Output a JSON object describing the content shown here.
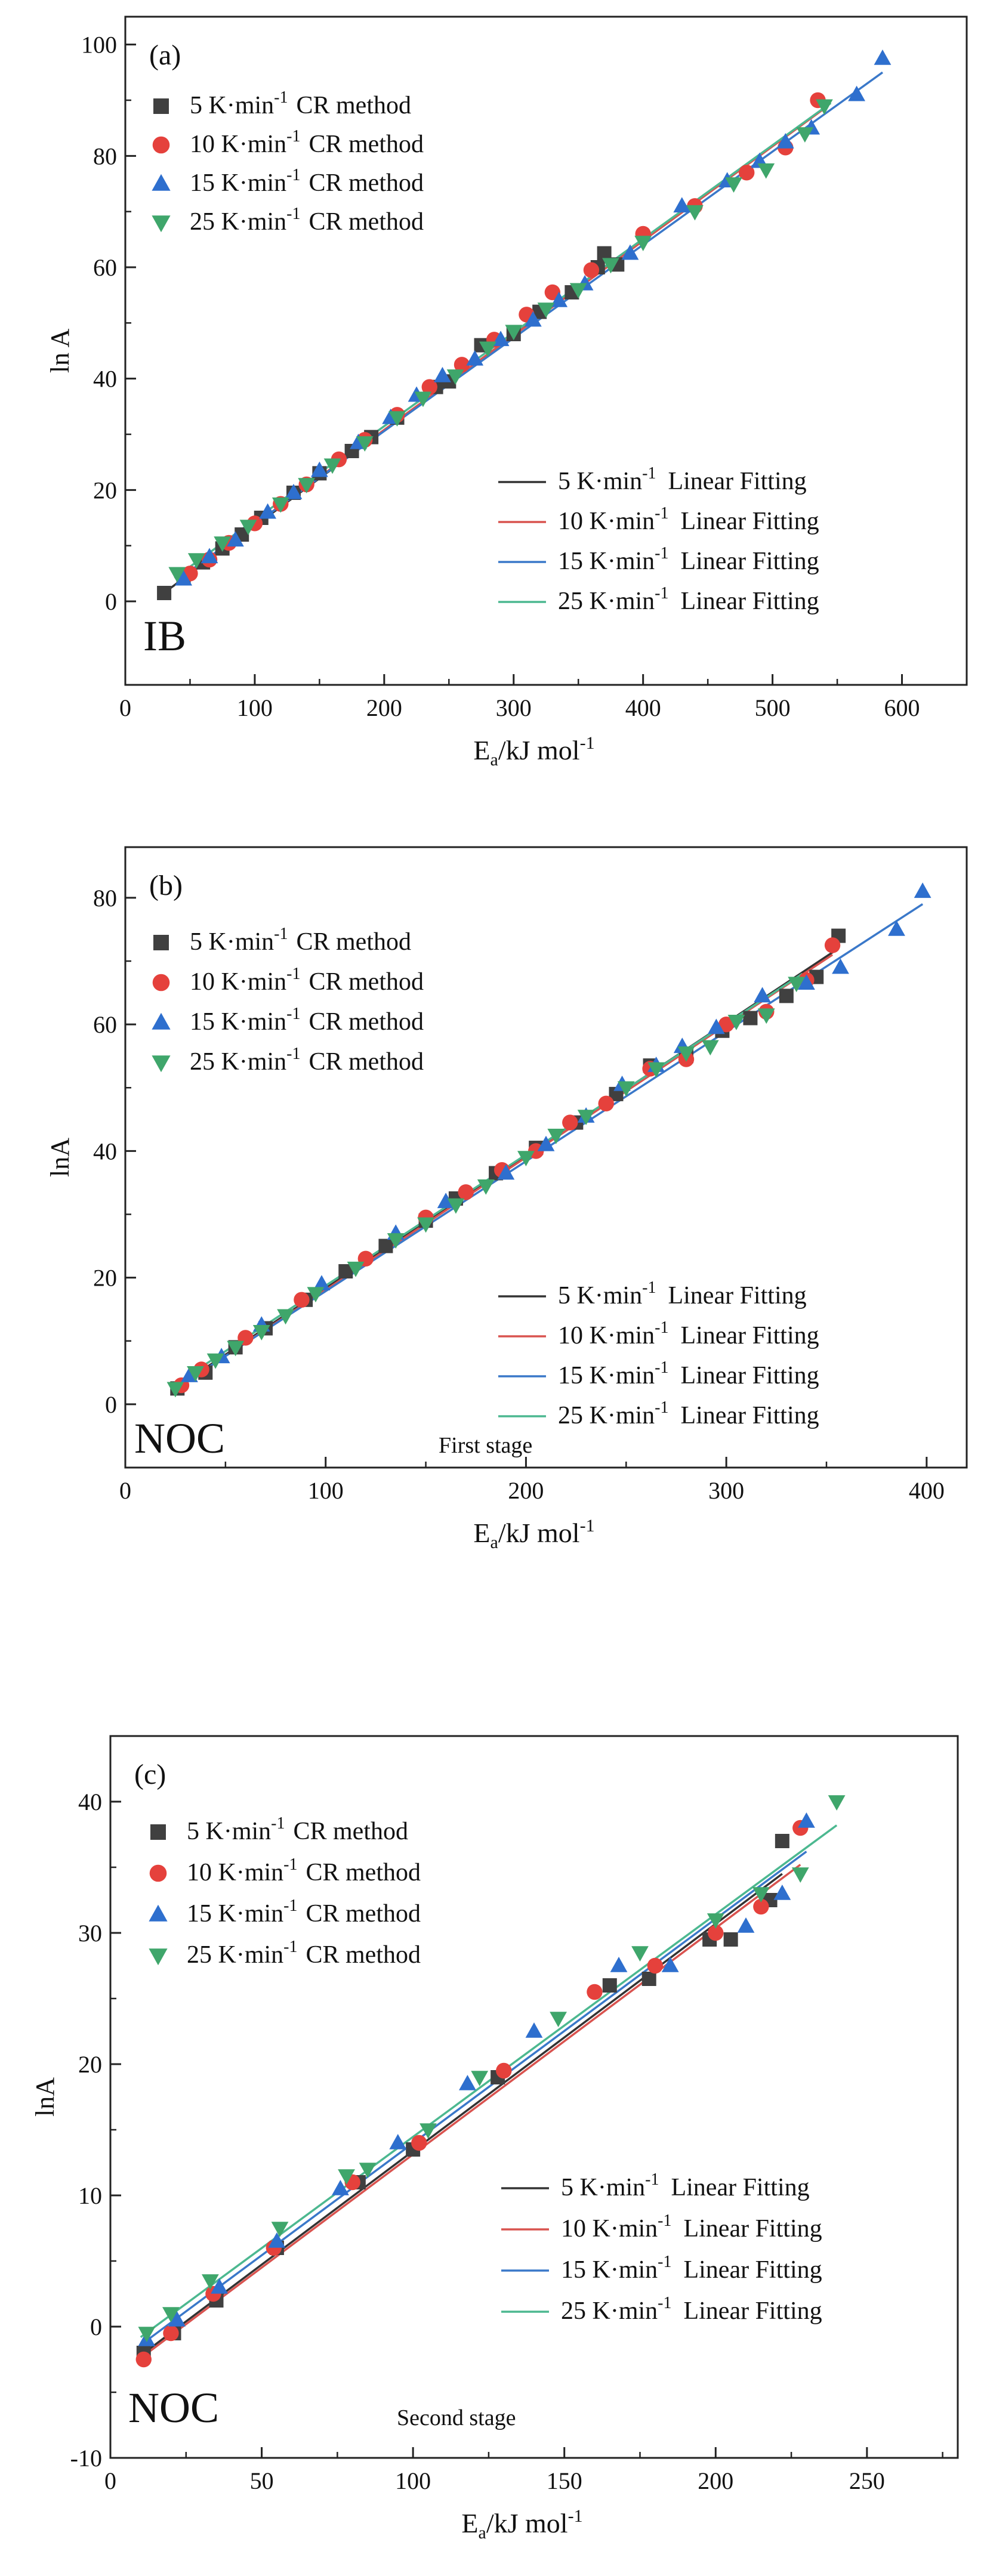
{
  "colors": {
    "s5": "#404040",
    "s10": "#e5413c",
    "s15": "#2e6fce",
    "s25": "#3fa66b",
    "fit5": "#333333",
    "fit10": "#d9534f",
    "fit15": "#3a78c9",
    "fit25": "#4cb890"
  },
  "chart_data": [
    {
      "type": "scatter",
      "panel_label": "(a)",
      "sample_label": "IB",
      "stage_label": "",
      "ylabel": "ln A",
      "xlabel_main": "E",
      "xlabel_sub": "a",
      "xlabel_rest": "/kJ mol",
      "xlabel_sup": "-1",
      "xlim": [
        0,
        650
      ],
      "ylim": [
        -15,
        105
      ],
      "xticks": [
        0,
        100,
        200,
        300,
        400,
        500,
        600
      ],
      "yticks": [
        0,
        20,
        40,
        60,
        80,
        100
      ],
      "xtick_labels": [
        "0",
        "100",
        "200",
        "300",
        "400",
        "500",
        "600"
      ],
      "ytick_labels": [
        "0",
        "20",
        "40",
        "60",
        "80",
        "100"
      ],
      "legend_scatter": [
        {
          "rate": "5 K·min",
          "sup": "-1",
          "method": "CR method"
        },
        {
          "rate": "10 K·min",
          "sup": "-1",
          "method": "CR method"
        },
        {
          "rate": "15 K·min",
          "sup": "-1",
          "method": "CR method"
        },
        {
          "rate": "25 K·min",
          "sup": "-1",
          "method": "CR method"
        }
      ],
      "legend_fit": [
        {
          "rate": "5 K·min",
          "sup": "-1",
          "method": "Linear Fitting"
        },
        {
          "rate": "10 K·min",
          "sup": "-1",
          "method": "Linear Fitting"
        },
        {
          "rate": "15 K·min",
          "sup": "-1",
          "method": "Linear Fitting"
        },
        {
          "rate": "25 K·min",
          "sup": "-1",
          "method": "Linear Fitting"
        }
      ],
      "series": [
        {
          "name": "5 K·min-1 CR method",
          "marker": "square",
          "color_key": "s5",
          "x": [
            30,
            45,
            60,
            75,
            90,
            105,
            130,
            150,
            175,
            190,
            210,
            240,
            250,
            275,
            300,
            320,
            345,
            365,
            370,
            380
          ],
          "y": [
            1.5,
            4.5,
            7,
            9.5,
            12,
            15,
            19.5,
            23,
            27,
            29.5,
            33,
            38.5,
            39.5,
            46,
            48,
            52,
            55.5,
            60,
            62.5,
            60.5
          ]
        },
        {
          "name": "10 K·min-1 CR method",
          "marker": "circle",
          "color_key": "s10",
          "x": [
            50,
            65,
            80,
            100,
            120,
            140,
            165,
            185,
            210,
            235,
            260,
            285,
            310,
            330,
            360,
            400,
            440,
            480,
            510,
            535
          ],
          "y": [
            5,
            7.5,
            10.5,
            14,
            17.5,
            21,
            25.5,
            29,
            33.5,
            38.5,
            42.5,
            47,
            51.5,
            55.5,
            59.5,
            66,
            71,
            77,
            81.5,
            90
          ]
        },
        {
          "name": "15 K·min-1 CR method",
          "marker": "triangle-up",
          "color_key": "s15",
          "x": [
            45,
            65,
            85,
            110,
            130,
            150,
            180,
            205,
            225,
            245,
            270,
            290,
            315,
            335,
            355,
            390,
            430,
            465,
            490,
            510,
            530,
            565,
            585
          ],
          "y": [
            4,
            8,
            11,
            16,
            19.5,
            23.5,
            28.5,
            33,
            37,
            40.5,
            43.5,
            47,
            50.5,
            54,
            57,
            62.5,
            71,
            75.5,
            79,
            82.5,
            85,
            91,
            97.5
          ]
        },
        {
          "name": "25 K·min-1 CR method",
          "marker": "triangle-down",
          "color_key": "s25",
          "x": [
            40,
            55,
            75,
            95,
            120,
            140,
            160,
            185,
            210,
            230,
            255,
            280,
            300,
            325,
            350,
            375,
            400,
            440,
            470,
            495,
            525,
            540
          ],
          "y": [
            5,
            7.5,
            10.5,
            13.5,
            17.5,
            21,
            24.5,
            28.5,
            33,
            36.5,
            40.5,
            45.5,
            48.5,
            52.5,
            56,
            60.5,
            64.5,
            70,
            75,
            77.5,
            84,
            89
          ]
        }
      ],
      "fits": [
        {
          "name": "5 K·min-1 Linear Fitting",
          "color_key": "fit5",
          "x": [
            28,
            380
          ],
          "y": [
            1.2,
            61.5
          ]
        },
        {
          "name": "10 K·min-1 Linear Fitting",
          "color_key": "fit10",
          "x": [
            45,
            540
          ],
          "y": [
            4.5,
            88.5
          ]
        },
        {
          "name": "15 K·min-1 Linear Fitting",
          "color_key": "fit15",
          "x": [
            40,
            585
          ],
          "y": [
            3.8,
            95
          ]
        },
        {
          "name": "25 K·min-1 Linear Fitting",
          "color_key": "fit25",
          "x": [
            38,
            545
          ],
          "y": [
            4.2,
            89.5
          ]
        }
      ]
    },
    {
      "type": "scatter",
      "panel_label": "(b)",
      "sample_label": "NOC",
      "stage_label": "First stage",
      "ylabel": "lnA",
      "xlabel_main": "E",
      "xlabel_sub": "a",
      "xlabel_rest": "/kJ mol",
      "xlabel_sup": "-1",
      "xlim": [
        0,
        420
      ],
      "ylim": [
        -10,
        88
      ],
      "xticks": [
        0,
        100,
        200,
        300,
        400
      ],
      "yticks": [
        0,
        20,
        40,
        60,
        80
      ],
      "xtick_labels": [
        "0",
        "100",
        "200",
        "300",
        "400"
      ],
      "ytick_labels": [
        "0",
        "20",
        "40",
        "60",
        "80"
      ],
      "legend_scatter": [
        {
          "rate": "5 K·min",
          "sup": "-1",
          "method": "CR method"
        },
        {
          "rate": "10 K·min",
          "sup": "-1",
          "method": "CR method"
        },
        {
          "rate": "15 K·min",
          "sup": "-1",
          "method": "CR method"
        },
        {
          "rate": "25 K·min",
          "sup": "-1",
          "method": "CR method"
        }
      ],
      "legend_fit": [
        {
          "rate": "5 K·min",
          "sup": "-1",
          "method": "Linear Fitting"
        },
        {
          "rate": "10 K·min",
          "sup": "-1",
          "method": "Linear Fitting"
        },
        {
          "rate": "15 K·min",
          "sup": "-1",
          "method": "Linear Fitting"
        },
        {
          "rate": "25 K·min",
          "sup": "-1",
          "method": "Linear Fitting"
        }
      ],
      "series": [
        {
          "name": "5 K·min-1 CR method",
          "marker": "square",
          "color_key": "s5",
          "x": [
            26,
            40,
            55,
            70,
            90,
            110,
            130,
            150,
            165,
            185,
            205,
            225,
            245,
            262,
            280,
            298,
            312,
            330,
            345,
            356
          ],
          "y": [
            2.5,
            5,
            9,
            12,
            16.5,
            21,
            25,
            29,
            32.5,
            36.5,
            40.5,
            44.5,
            49,
            53.5,
            55,
            59,
            61,
            64.5,
            67.5,
            74
          ]
        },
        {
          "name": "10 K·min-1 CR method",
          "marker": "circle",
          "color_key": "s10",
          "x": [
            28,
            38,
            60,
            88,
            120,
            150,
            170,
            188,
            205,
            222,
            240,
            262,
            280,
            300,
            320,
            340,
            353
          ],
          "y": [
            3,
            5.5,
            10.5,
            16.5,
            23,
            29.5,
            33.5,
            37,
            40,
            44.5,
            47.5,
            53,
            54.5,
            60,
            62,
            67,
            72.5
          ]
        },
        {
          "name": "15 K·min-1 CR method",
          "marker": "triangle-up",
          "color_key": "s15",
          "x": [
            32,
            48,
            68,
            98,
            135,
            160,
            190,
            210,
            230,
            248,
            265,
            278,
            295,
            318,
            340,
            357,
            385,
            398
          ],
          "y": [
            4.5,
            7.5,
            12.5,
            19,
            27,
            32,
            36.5,
            41,
            45.5,
            50.5,
            53.5,
            56.5,
            59.5,
            64.5,
            66.5,
            69,
            75,
            81
          ]
        },
        {
          "name": "25 K·min-1 CR method",
          "marker": "triangle-down",
          "color_key": "s25",
          "x": [
            25,
            35,
            45,
            55,
            68,
            80,
            95,
            115,
            135,
            150,
            165,
            180,
            200,
            215,
            230,
            250,
            265,
            280,
            292,
            305,
            320,
            335
          ],
          "y": [
            2.5,
            5,
            7,
            9,
            11.5,
            14,
            17.5,
            21.5,
            26,
            28.5,
            31.5,
            34.5,
            39,
            42.5,
            45.5,
            50,
            53,
            55.5,
            56.5,
            60.5,
            61.5,
            66.5
          ]
        }
      ],
      "fits": [
        {
          "name": "5 K·min-1 Linear Fitting",
          "color_key": "fit5",
          "x": [
            25,
            356
          ],
          "y": [
            2.6,
            72
          ]
        },
        {
          "name": "10 K·min-1 Linear Fitting",
          "color_key": "fit10",
          "x": [
            27,
            353
          ],
          "y": [
            2.8,
            71
          ]
        },
        {
          "name": "15 K·min-1 Linear Fitting",
          "color_key": "fit15",
          "x": [
            30,
            398
          ],
          "y": [
            3.5,
            79
          ]
        },
        {
          "name": "25 K·min-1 Linear Fitting",
          "color_key": "fit25",
          "x": [
            24,
            338
          ],
          "y": [
            3,
            68
          ]
        }
      ]
    },
    {
      "type": "scatter",
      "panel_label": "(c)",
      "sample_label": "NOC",
      "stage_label": "Second stage",
      "ylabel": "lnA",
      "xlabel_main": "E",
      "xlabel_sub": "a",
      "xlabel_rest": "/kJ mol",
      "xlabel_sup": "-1",
      "xlim": [
        0,
        280
      ],
      "ylim": [
        -10,
        45
      ],
      "xticks": [
        0,
        50,
        100,
        150,
        200,
        250
      ],
      "yticks": [
        -10,
        0,
        10,
        20,
        30,
        40
      ],
      "xtick_labels": [
        "0",
        "50",
        "100",
        "150",
        "200",
        "250"
      ],
      "ytick_labels": [
        "-10",
        "0",
        "10",
        "20",
        "30",
        "40"
      ],
      "legend_scatter": [
        {
          "rate": "5 K·min",
          "sup": "-1",
          "method": "CR method"
        },
        {
          "rate": "10 K·min",
          "sup": "-1",
          "method": "CR method"
        },
        {
          "rate": "15 K·min",
          "sup": "-1",
          "method": "CR method"
        },
        {
          "rate": "25 K·min",
          "sup": "-1",
          "method": "CR method"
        }
      ],
      "legend_fit": [
        {
          "rate": "5 K·min",
          "sup": "-1",
          "method": "Linear Fitting"
        },
        {
          "rate": "10 K·min",
          "sup": "-1",
          "method": "Linear Fitting"
        },
        {
          "rate": "15 K·min",
          "sup": "-1",
          "method": "Linear Fitting"
        },
        {
          "rate": "25 K·min",
          "sup": "-1",
          "method": "Linear Fitting"
        }
      ],
      "series": [
        {
          "name": "5 K·min-1 CR method",
          "marker": "square",
          "color_key": "s5",
          "x": [
            11,
            21,
            35,
            55,
            82,
            100,
            128,
            165,
            178,
            198,
            205,
            218,
            222
          ],
          "y": [
            -2,
            -0.5,
            2,
            6,
            11,
            13.5,
            19,
            26,
            26.5,
            29.5,
            29.5,
            32.5,
            37
          ]
        },
        {
          "name": "10 K·min-1 CR method",
          "marker": "circle",
          "color_key": "s10",
          "x": [
            11,
            20,
            34,
            54,
            80,
            102,
            130,
            160,
            180,
            200,
            215,
            228
          ],
          "y": [
            -2.5,
            -0.5,
            2.5,
            6,
            11,
            14,
            19.5,
            25.5,
            27.5,
            30,
            32,
            38
          ]
        },
        {
          "name": "15 K·min-1 CR method",
          "marker": "triangle-up",
          "color_key": "s15",
          "x": [
            12,
            22,
            36,
            55,
            76,
            95,
            118,
            140,
            168,
            185,
            210,
            222,
            230
          ],
          "y": [
            -1,
            0.5,
            3,
            6.5,
            10.5,
            14,
            18.5,
            22.5,
            27.5,
            27.5,
            30.5,
            33,
            38.5
          ]
        },
        {
          "name": "25 K·min-1 CR method",
          "marker": "triangle-down",
          "color_key": "s25",
          "x": [
            12,
            20,
            33,
            56,
            78,
            85,
            105,
            122,
            148,
            175,
            200,
            215,
            228,
            240
          ],
          "y": [
            -0.5,
            1,
            3.5,
            7.5,
            11.5,
            12,
            15,
            19,
            23.5,
            28.5,
            31,
            33,
            34.5,
            40
          ]
        }
      ],
      "fits": [
        {
          "name": "5 K·min-1 Linear Fitting",
          "color_key": "fit5",
          "x": [
            10,
            222
          ],
          "y": [
            -2.2,
            34.5
          ]
        },
        {
          "name": "10 K·min-1 Linear Fitting",
          "color_key": "fit10",
          "x": [
            10,
            228
          ],
          "y": [
            -2.4,
            35.2
          ]
        },
        {
          "name": "15 K·min-1 Linear Fitting",
          "color_key": "fit15",
          "x": [
            10,
            230
          ],
          "y": [
            -1.4,
            36.2
          ]
        },
        {
          "name": "25 K·min-1 Linear Fitting",
          "color_key": "fit25",
          "x": [
            10,
            240
          ],
          "y": [
            -0.8,
            38.2
          ]
        }
      ]
    }
  ]
}
